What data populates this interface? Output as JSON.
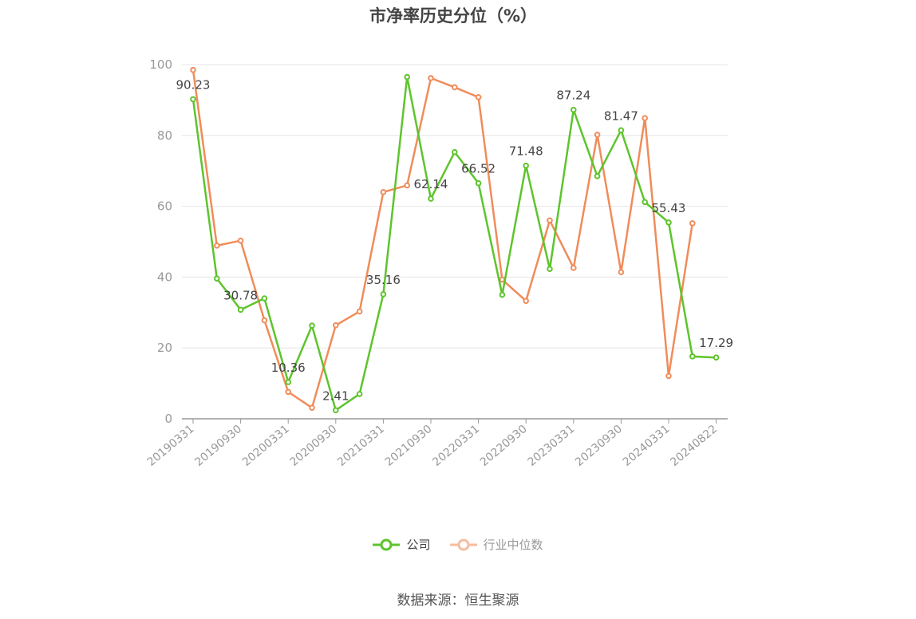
{
  "title": "市净率历史分位（%）",
  "source": "数据来源：恒生聚源",
  "colors": {
    "company": "#5ec42c",
    "industry": "#f08c5a",
    "axis": "#999999",
    "grid": "#e6e6e6",
    "label": "#444444",
    "legend_inactive": "#aaaaaa"
  },
  "chart_data": {
    "type": "line",
    "ylim": [
      0,
      100
    ],
    "yticks": [
      0,
      20,
      40,
      60,
      80,
      100
    ],
    "grid": true,
    "legend_position": "bottom",
    "x": [
      "20190331",
      "20190630",
      "20190930",
      "20191231",
      "20200331",
      "20200630",
      "20200930",
      "20201231",
      "20210331",
      "20210630",
      "20210930",
      "20211231",
      "20220331",
      "20220630",
      "20220930",
      "20221231",
      "20230331",
      "20230630",
      "20230930",
      "20231231",
      "20240331",
      "20240630",
      "20240822"
    ],
    "x_tick_labels": [
      "20190331",
      "20190930",
      "20200331",
      "20200930",
      "20210331",
      "20210930",
      "20220331",
      "20220930",
      "20230331",
      "20230930",
      "20240331",
      "20240822"
    ],
    "series": [
      {
        "name": "公司",
        "values": [
          90.23,
          39.6,
          30.78,
          34.0,
          10.36,
          26.3,
          2.41,
          7.0,
          35.16,
          96.5,
          62.14,
          75.3,
          66.52,
          35.0,
          71.48,
          42.3,
          87.24,
          68.5,
          81.47,
          61.2,
          55.43,
          17.6,
          17.29
        ],
        "labels": [
          "90.23",
          null,
          "30.78",
          null,
          "10.36",
          null,
          "2.41",
          null,
          "35.16",
          null,
          "62.14",
          null,
          "66.52",
          null,
          "71.48",
          null,
          "87.24",
          null,
          "81.47",
          null,
          "55.43",
          null,
          "17.29"
        ]
      },
      {
        "name": "行业中位数",
        "values": [
          98.5,
          48.9,
          50.3,
          27.8,
          7.6,
          3.1,
          26.4,
          30.3,
          64.0,
          65.9,
          96.2,
          93.6,
          90.8,
          39.3,
          33.3,
          56.0,
          42.6,
          80.2,
          41.4,
          84.9,
          12.1,
          55.2,
          null
        ]
      }
    ]
  }
}
